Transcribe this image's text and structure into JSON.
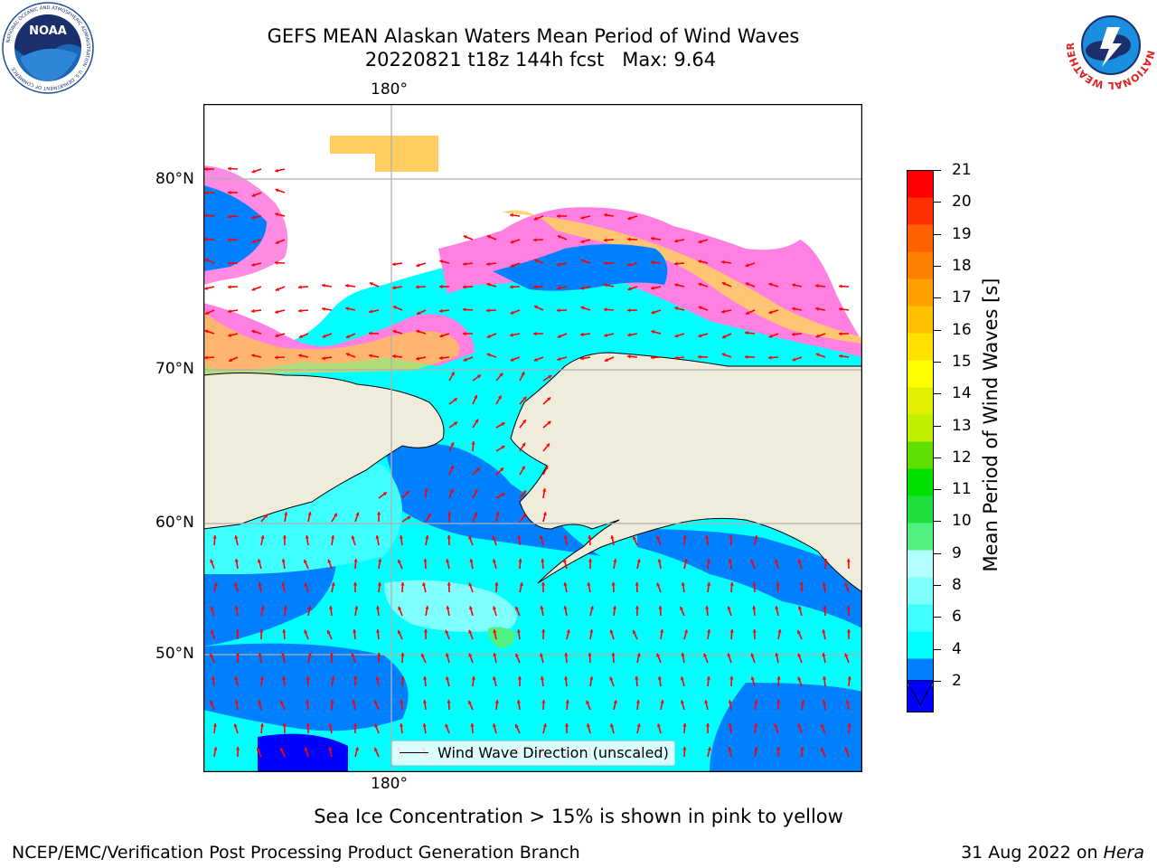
{
  "title": {
    "line1": "GEFS MEAN Alaskan Waters Mean Period of Wind Waves",
    "line2": "20220821 t18z 144h fcst   Max: 9.64"
  },
  "logos": {
    "left": "noaa-logo",
    "right": "national-weather-service-logo",
    "left_text": "NOAA",
    "left_ring_text": "NATIONAL OCEANIC AND ATMOSPHERIC ADMINISTRATION · U.S. DEPARTMENT OF COMMERCE",
    "right_ring_text": "NATIONAL WEATHER SERVICE"
  },
  "map": {
    "lon_label_top": "180°",
    "lon_label_bottom": "180°",
    "lat_labels": [
      "80°N",
      "70°N",
      "60°N",
      "50°N"
    ],
    "legend_text": "Wind Wave Direction (unscaled)",
    "arrow_color": "#ff0000",
    "land_color": "#efecdc",
    "gridline_color": "#b0b0b0"
  },
  "colorbar": {
    "label": "Mean Period of Wind Waves [s]",
    "ticks": [
      "21",
      "20",
      "19",
      "18",
      "17",
      "16",
      "15",
      "14",
      "13",
      "12",
      "11",
      "10",
      "9",
      "8",
      "6",
      "4",
      "2"
    ],
    "colors": [
      "#0000ff",
      "#0080ff",
      "#00ffff",
      "#40ffff",
      "#80ffff",
      "#b3ffff",
      "#50f080",
      "#20e040",
      "#00e000",
      "#60e000",
      "#c0f000",
      "#e0f000",
      "#ffff00",
      "#ffe000",
      "#ffc000",
      "#ffa000",
      "#ff8000",
      "#ff6000",
      "#ff3000",
      "#ff0000"
    ]
  },
  "caption": "Sea Ice Concentration > 15% is shown in pink to yellow",
  "footer": {
    "left": "NCEP/EMC/Verification Post Processing Product Generation Branch",
    "right_date": "31 Aug 2022 on ",
    "right_host": "Hera"
  }
}
